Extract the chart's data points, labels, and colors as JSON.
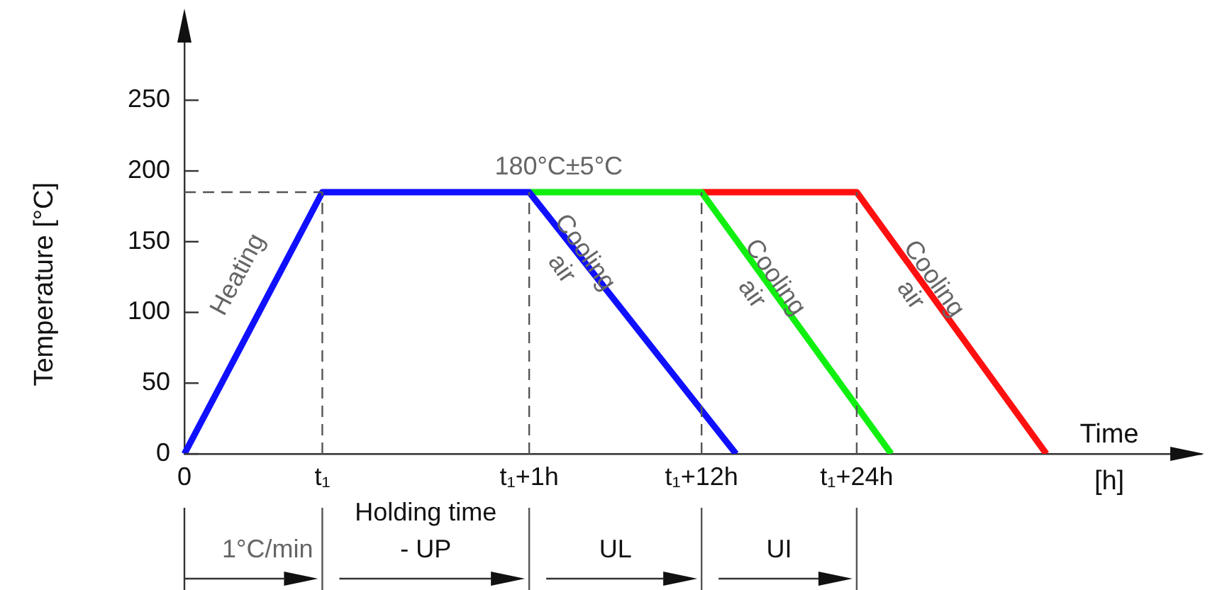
{
  "chart_data": {
    "type": "line",
    "ylabel": "Temperature [°C]",
    "xlabel": "Time [h]",
    "categories": [
      "0",
      null,
      null,
      null,
      null,
      null,
      null,
      null,
      "t₁",
      null,
      null,
      null,
      null,
      null,
      null,
      null,
      null,
      null,
      null,
      null,
      "t₁+1h",
      null,
      null,
      null,
      null,
      null,
      null,
      null,
      null,
      null,
      "t₁+12h",
      null,
      null,
      null,
      null,
      null,
      null,
      null,
      null,
      "t₁+24h",
      null,
      null,
      null,
      null,
      null,
      null,
      null,
      null,
      null,
      null,
      null,
      null,
      null,
      null,
      null,
      null,
      null,
      null,
      null,
      null
    ],
    "series": [
      {
        "color": "#1010ff",
        "values": [
          0,
          null,
          null,
          null,
          null,
          null,
          null,
          null,
          185,
          null,
          null,
          null,
          null,
          null,
          null,
          null,
          null,
          null,
          null,
          null,
          185,
          null,
          null,
          null,
          null,
          null,
          null,
          null,
          null,
          null,
          null,
          null,
          0,
          null,
          null,
          null,
          null,
          null,
          null,
          null,
          null,
          null,
          null,
          null,
          null,
          null,
          null,
          null,
          null,
          null,
          null,
          null,
          null,
          null,
          null,
          null,
          null,
          null,
          null,
          null
        ]
      },
      {
        "color": "#10f010",
        "values": [
          null,
          null,
          null,
          null,
          null,
          null,
          null,
          null,
          null,
          null,
          null,
          null,
          null,
          null,
          null,
          null,
          null,
          null,
          null,
          null,
          185,
          null,
          null,
          null,
          null,
          null,
          null,
          null,
          null,
          null,
          185,
          null,
          null,
          null,
          null,
          null,
          null,
          null,
          null,
          null,
          null,
          0,
          null,
          null,
          null,
          null,
          null,
          null,
          null,
          null,
          null,
          null,
          null,
          null,
          null,
          null,
          null,
          null,
          null,
          null
        ]
      },
      {
        "color": "#ff1010",
        "values": [
          null,
          null,
          null,
          null,
          null,
          null,
          null,
          null,
          null,
          null,
          null,
          null,
          null,
          null,
          null,
          null,
          null,
          null,
          null,
          null,
          null,
          null,
          null,
          null,
          null,
          null,
          null,
          null,
          null,
          null,
          185,
          null,
          null,
          null,
          null,
          null,
          null,
          null,
          null,
          185,
          null,
          null,
          null,
          null,
          null,
          null,
          null,
          null,
          null,
          null,
          0,
          null,
          null,
          null,
          null,
          null,
          null,
          null,
          null,
          null
        ]
      }
    ],
    "ylim": [
      0,
      300
    ],
    "yticks": [
      0,
      50,
      100,
      150,
      200,
      250
    ],
    "ref_lines": [
      {
        "axis": "y",
        "value": 185,
        "color": "#555555",
        "line_style": "dashed"
      },
      {
        "axis": "x",
        "value": "t₁",
        "color": "#555555",
        "line_style": "dashed"
      },
      {
        "axis": "x",
        "value": "t₁+1h",
        "color": "#555555",
        "line_style": "dashed"
      },
      {
        "axis": "x",
        "value": "t₁+12h",
        "color": "#555555",
        "line_style": "dashed"
      },
      {
        "axis": "x",
        "value": "t₁+24h",
        "color": "#555555",
        "line_style": "dashed"
      }
    ],
    "annotations": [
      "Heating",
      "180°C±5°C",
      "Cooling air",
      "Cooling air",
      "Cooling air",
      "1°C/min",
      "Holding time - UP",
      "UL",
      "UI"
    ],
    "grid": false,
    "legend": false,
    "marker": "none",
    "line_style": "solid"
  }
}
